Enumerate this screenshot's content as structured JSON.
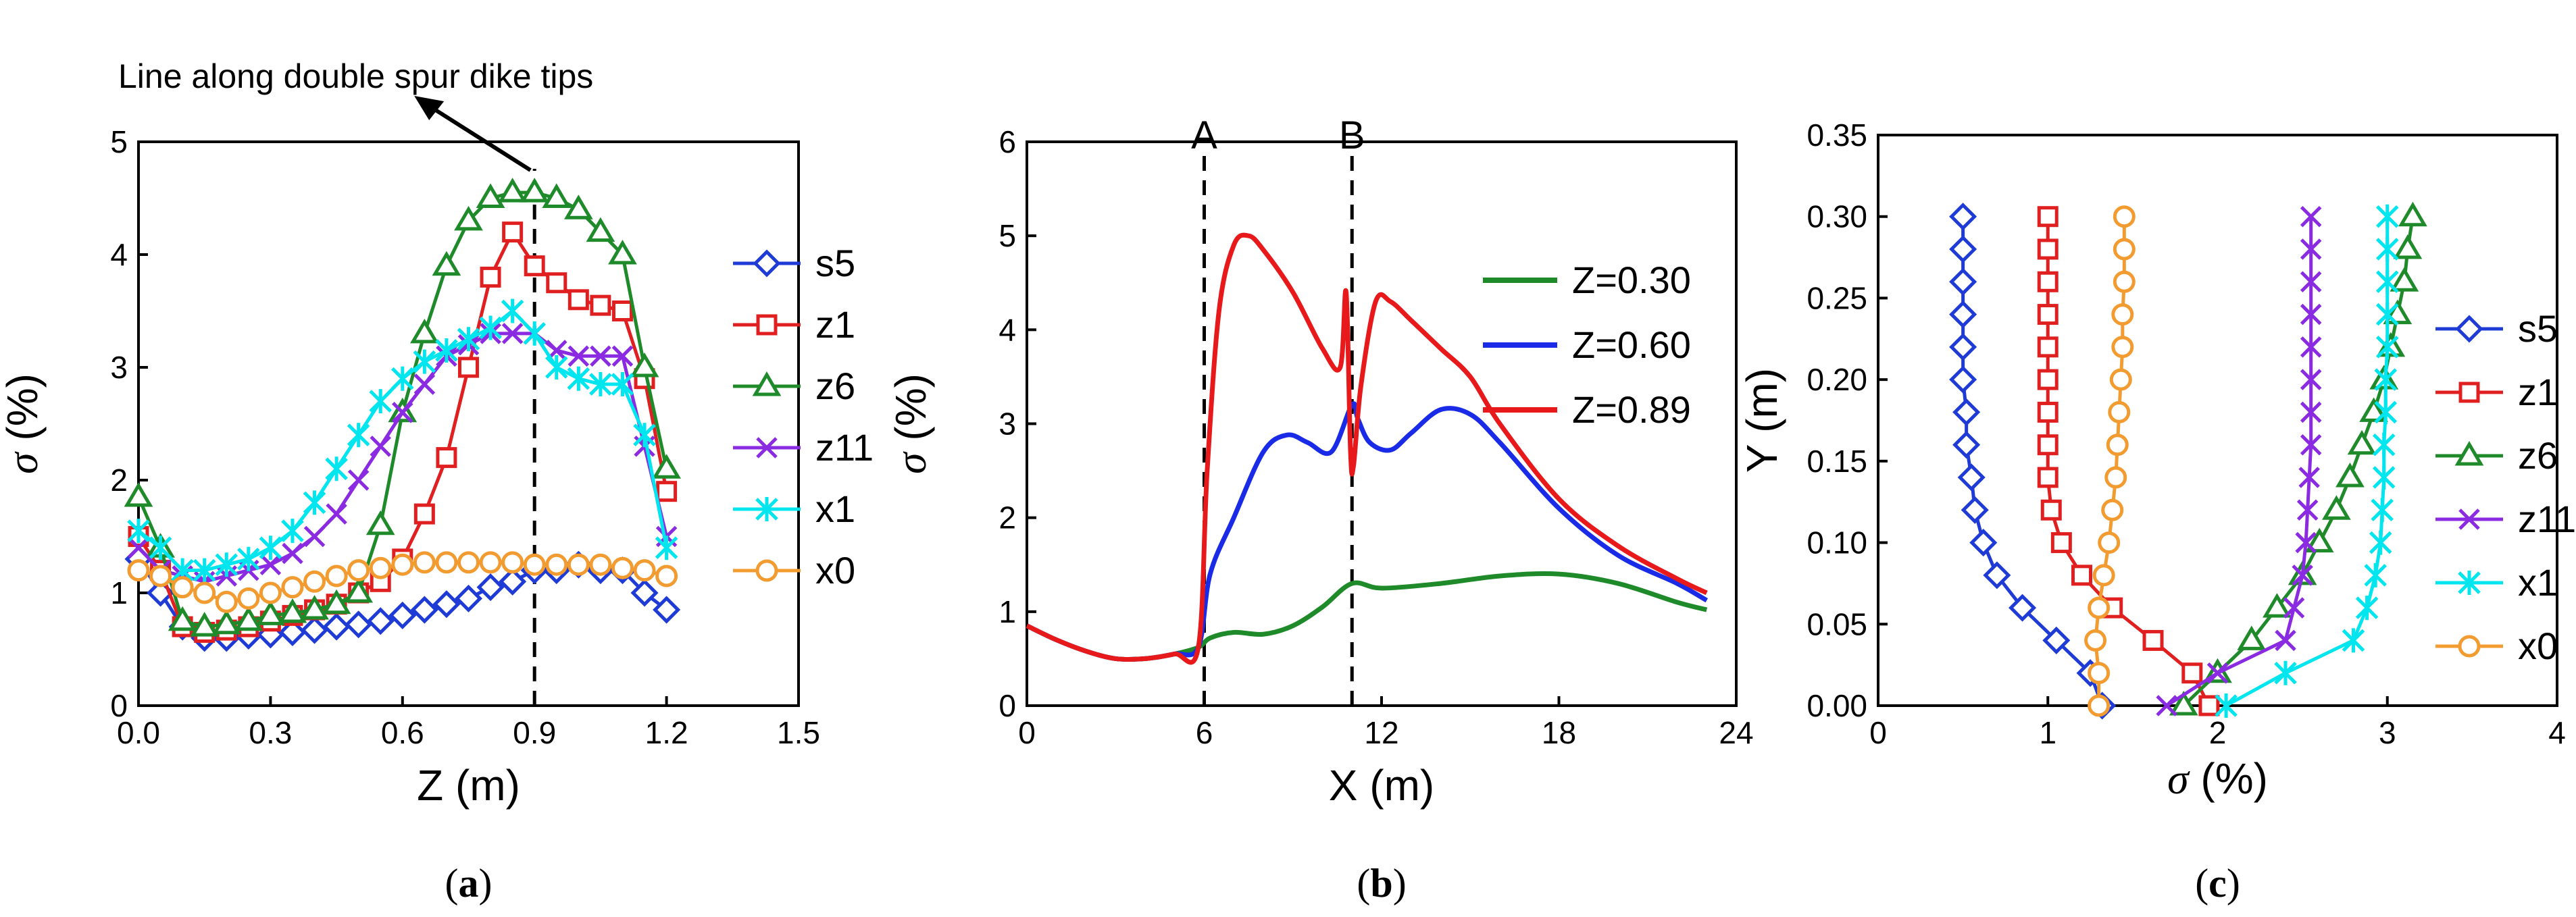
{
  "chart_data": [
    {
      "type": "line",
      "panel_label": "a",
      "xlabel": "Z (m)",
      "ylabel_symbol": "σ",
      "ylabel_unit": "(%)",
      "xlim": [
        0,
        1.5
      ],
      "ylim": [
        0,
        5
      ],
      "xticks": [
        "0.0",
        "0.3",
        "0.6",
        "0.9",
        "1.2",
        "1.5"
      ],
      "xtick_values": [
        0,
        0.3,
        0.6,
        0.9,
        1.2,
        1.5
      ],
      "yticks": [
        "0",
        "1",
        "2",
        "3",
        "4",
        "5"
      ],
      "ytick_values": [
        0,
        1,
        2,
        3,
        4,
        5
      ],
      "annotation": {
        "text": "Line along double spur dike tips",
        "x": 0.9
      },
      "legend_position": "right",
      "series": [
        {
          "name": "s5",
          "color": "#1f3bd6",
          "marker": "diamond",
          "x": [
            0,
            0.05,
            0.1,
            0.15,
            0.2,
            0.25,
            0.3,
            0.35,
            0.4,
            0.45,
            0.5,
            0.55,
            0.6,
            0.65,
            0.7,
            0.75,
            0.8,
            0.85,
            0.9,
            0.95,
            1.0,
            1.05,
            1.1,
            1.15,
            1.2
          ],
          "y": [
            1.3,
            1.0,
            0.7,
            0.6,
            0.6,
            0.62,
            0.63,
            0.65,
            0.67,
            0.7,
            0.72,
            0.75,
            0.8,
            0.85,
            0.9,
            0.95,
            1.05,
            1.1,
            1.2,
            1.2,
            1.25,
            1.2,
            1.2,
            1.0,
            0.85
          ]
        },
        {
          "name": "z1",
          "color": "#e02020",
          "marker": "square",
          "x": [
            0,
            0.05,
            0.1,
            0.15,
            0.2,
            0.25,
            0.3,
            0.35,
            0.4,
            0.45,
            0.5,
            0.55,
            0.6,
            0.65,
            0.7,
            0.75,
            0.8,
            0.85,
            0.9,
            0.95,
            1.0,
            1.05,
            1.1,
            1.15,
            1.2
          ],
          "y": [
            1.5,
            1.2,
            0.7,
            0.65,
            0.67,
            0.7,
            0.75,
            0.8,
            0.85,
            0.9,
            1.0,
            1.1,
            1.3,
            1.7,
            2.2,
            3.0,
            3.8,
            4.2,
            3.9,
            3.75,
            3.6,
            3.55,
            3.5,
            2.9,
            1.9
          ]
        },
        {
          "name": "z6",
          "color": "#1e8a2a",
          "marker": "triangle",
          "x": [
            0,
            0.05,
            0.1,
            0.15,
            0.2,
            0.25,
            0.3,
            0.35,
            0.4,
            0.45,
            0.5,
            0.55,
            0.6,
            0.65,
            0.7,
            0.75,
            0.8,
            0.85,
            0.9,
            0.95,
            1.0,
            1.05,
            1.1,
            1.15,
            1.2
          ],
          "y": [
            1.85,
            1.4,
            0.75,
            0.7,
            0.72,
            0.75,
            0.8,
            0.82,
            0.85,
            0.9,
            1.0,
            1.6,
            2.6,
            3.3,
            3.9,
            4.3,
            4.5,
            4.55,
            4.55,
            4.5,
            4.4,
            4.2,
            4.0,
            3.0,
            2.1
          ]
        },
        {
          "name": "z11",
          "color": "#8a2be2",
          "marker": "cross",
          "x": [
            0,
            0.05,
            0.1,
            0.15,
            0.2,
            0.25,
            0.3,
            0.35,
            0.4,
            0.45,
            0.5,
            0.55,
            0.6,
            0.65,
            0.7,
            0.75,
            0.8,
            0.85,
            0.9,
            0.95,
            1.0,
            1.05,
            1.1,
            1.15,
            1.2
          ],
          "y": [
            1.4,
            1.2,
            1.15,
            1.1,
            1.15,
            1.2,
            1.25,
            1.35,
            1.5,
            1.7,
            2.0,
            2.3,
            2.6,
            2.85,
            3.1,
            3.2,
            3.3,
            3.3,
            3.3,
            3.15,
            3.1,
            3.1,
            3.1,
            2.3,
            1.5
          ]
        },
        {
          "name": "x1",
          "color": "#00e5ee",
          "marker": "star",
          "x": [
            0,
            0.05,
            0.1,
            0.15,
            0.2,
            0.25,
            0.3,
            0.35,
            0.4,
            0.45,
            0.5,
            0.55,
            0.6,
            0.65,
            0.7,
            0.75,
            0.8,
            0.85,
            0.9,
            0.95,
            1.0,
            1.05,
            1.1,
            1.15,
            1.2
          ],
          "y": [
            1.55,
            1.4,
            1.2,
            1.2,
            1.25,
            1.3,
            1.4,
            1.55,
            1.8,
            2.1,
            2.4,
            2.7,
            2.9,
            3.05,
            3.15,
            3.25,
            3.35,
            3.5,
            3.3,
            3.0,
            2.9,
            2.85,
            2.85,
            2.4,
            1.4
          ]
        },
        {
          "name": "x0",
          "color": "#f29b30",
          "marker": "circle",
          "x": [
            0,
            0.05,
            0.1,
            0.15,
            0.2,
            0.25,
            0.3,
            0.35,
            0.4,
            0.45,
            0.5,
            0.55,
            0.6,
            0.65,
            0.7,
            0.75,
            0.8,
            0.85,
            0.9,
            0.95,
            1.0,
            1.05,
            1.1,
            1.15,
            1.2
          ],
          "y": [
            1.2,
            1.15,
            1.05,
            1.0,
            0.92,
            0.95,
            1.0,
            1.05,
            1.1,
            1.15,
            1.2,
            1.22,
            1.25,
            1.27,
            1.27,
            1.27,
            1.27,
            1.27,
            1.25,
            1.25,
            1.25,
            1.25,
            1.22,
            1.2,
            1.15
          ]
        }
      ]
    },
    {
      "type": "line",
      "panel_label": "b",
      "xlabel": "X (m)",
      "ylabel_symbol": "σ",
      "ylabel_unit": "(%)",
      "xlim": [
        0,
        24
      ],
      "ylim": [
        0,
        6
      ],
      "xticks": [
        "0",
        "6",
        "12",
        "18",
        "24"
      ],
      "xtick_values": [
        0,
        6,
        12,
        18,
        24
      ],
      "yticks": [
        "0",
        "1",
        "2",
        "3",
        "4",
        "5",
        "6"
      ],
      "ytick_values": [
        0,
        1,
        2,
        3,
        4,
        5,
        6
      ],
      "markers": [
        {
          "label": "A",
          "x": 6
        },
        {
          "label": "B",
          "x": 11
        }
      ],
      "legend_position": "top-right",
      "series": [
        {
          "name": "Z=0.30",
          "color": "#1e8a2a",
          "x": [
            0,
            1,
            2,
            3,
            4,
            5,
            5.8,
            6.2,
            7,
            8,
            9,
            10,
            11,
            12,
            14,
            16,
            18,
            20,
            22,
            23
          ],
          "y": [
            0.85,
            0.7,
            0.58,
            0.5,
            0.5,
            0.55,
            0.62,
            0.72,
            0.78,
            0.76,
            0.85,
            1.05,
            1.3,
            1.25,
            1.3,
            1.38,
            1.4,
            1.3,
            1.1,
            1.02
          ]
        },
        {
          "name": "Z=0.60",
          "color": "#1a2be8",
          "x": [
            0,
            1,
            2,
            3,
            4,
            5,
            5.8,
            6.2,
            7,
            8,
            8.8,
            9.5,
            10.3,
            11.0,
            11.2,
            11.6,
            12.3,
            13,
            14,
            15,
            16,
            18,
            20,
            22,
            23
          ],
          "y": [
            0.85,
            0.7,
            0.58,
            0.5,
            0.5,
            0.55,
            0.62,
            1.4,
            2.0,
            2.7,
            2.88,
            2.8,
            2.7,
            3.2,
            3.05,
            2.8,
            2.72,
            2.9,
            3.15,
            3.1,
            2.8,
            2.1,
            1.6,
            1.3,
            1.12
          ]
        },
        {
          "name": "Z=0.89",
          "color": "#e8191a",
          "x": [
            0,
            1,
            2,
            3,
            4,
            5,
            5.8,
            6.1,
            6.5,
            7,
            7.5,
            8,
            9,
            10,
            10.6,
            10.8,
            10.95,
            11.05,
            11.3,
            11.8,
            12.3,
            13,
            14,
            15,
            16,
            18,
            20,
            22,
            23
          ],
          "y": [
            0.85,
            0.7,
            0.58,
            0.5,
            0.5,
            0.55,
            0.62,
            2.5,
            4.2,
            4.9,
            5.0,
            4.85,
            4.4,
            3.8,
            3.6,
            4.4,
            2.7,
            2.55,
            3.4,
            4.3,
            4.3,
            4.1,
            3.8,
            3.5,
            3.0,
            2.2,
            1.7,
            1.35,
            1.2
          ]
        }
      ]
    },
    {
      "type": "line",
      "panel_label": "c",
      "xlabel_symbol": "σ",
      "xlabel_unit": "(%)",
      "ylabel": "Y (m)",
      "xlim": [
        0,
        4
      ],
      "ylim": [
        0,
        0.35
      ],
      "xticks": [
        "0",
        "1",
        "2",
        "3",
        "4"
      ],
      "xtick_values": [
        0,
        1,
        2,
        3,
        4
      ],
      "yticks": [
        "0.00",
        "0.05",
        "0.10",
        "0.15",
        "0.20",
        "0.25",
        "0.30",
        "0.35"
      ],
      "ytick_values": [
        0,
        0.05,
        0.1,
        0.15,
        0.2,
        0.25,
        0.3,
        0.35
      ],
      "legend_position": "right",
      "series": [
        {
          "name": "s5",
          "color": "#1f3bd6",
          "marker": "diamond",
          "x": [
            1.32,
            1.25,
            1.05,
            0.85,
            0.7,
            0.62,
            0.57,
            0.55,
            0.52,
            0.52,
            0.5,
            0.5,
            0.5,
            0.5,
            0.5,
            0.5
          ],
          "y": [
            0.0,
            0.02,
            0.04,
            0.06,
            0.08,
            0.1,
            0.12,
            0.14,
            0.16,
            0.18,
            0.2,
            0.22,
            0.24,
            0.26,
            0.28,
            0.3
          ]
        },
        {
          "name": "z1",
          "color": "#e02020",
          "marker": "square",
          "x": [
            1.95,
            1.85,
            1.62,
            1.38,
            1.2,
            1.08,
            1.02,
            1.0,
            1.0,
            1.0,
            1.0,
            1.0,
            1.0,
            1.0,
            1.0,
            1.0
          ],
          "y": [
            0.0,
            0.02,
            0.04,
            0.06,
            0.08,
            0.1,
            0.12,
            0.14,
            0.16,
            0.18,
            0.2,
            0.22,
            0.24,
            0.26,
            0.28,
            0.3
          ]
        },
        {
          "name": "z6",
          "color": "#1e8a2a",
          "marker": "triangle",
          "x": [
            1.8,
            2.0,
            2.2,
            2.35,
            2.5,
            2.6,
            2.7,
            2.78,
            2.85,
            2.92,
            2.98,
            3.02,
            3.06,
            3.1,
            3.12,
            3.15
          ],
          "y": [
            0.0,
            0.02,
            0.04,
            0.06,
            0.08,
            0.1,
            0.12,
            0.14,
            0.16,
            0.18,
            0.2,
            0.22,
            0.24,
            0.26,
            0.28,
            0.3
          ]
        },
        {
          "name": "z11",
          "color": "#8a2be2",
          "marker": "cross",
          "x": [
            1.7,
            2.0,
            2.4,
            2.45,
            2.5,
            2.52,
            2.53,
            2.54,
            2.55,
            2.55,
            2.55,
            2.55,
            2.55,
            2.55,
            2.55,
            2.55
          ],
          "y": [
            0.0,
            0.02,
            0.04,
            0.06,
            0.08,
            0.1,
            0.12,
            0.14,
            0.16,
            0.18,
            0.2,
            0.22,
            0.24,
            0.26,
            0.28,
            0.3
          ]
        },
        {
          "name": "x1",
          "color": "#00e5ee",
          "marker": "star",
          "x": [
            2.05,
            2.4,
            2.8,
            2.88,
            2.93,
            2.96,
            2.97,
            2.98,
            2.98,
            2.99,
            2.99,
            3.0,
            3.0,
            3.0,
            3.0,
            3.0
          ],
          "y": [
            0.0,
            0.02,
            0.04,
            0.06,
            0.08,
            0.1,
            0.12,
            0.14,
            0.16,
            0.18,
            0.2,
            0.22,
            0.24,
            0.26,
            0.28,
            0.3
          ]
        },
        {
          "name": "x0",
          "color": "#f29b30",
          "marker": "circle",
          "x": [
            1.3,
            1.3,
            1.28,
            1.3,
            1.33,
            1.36,
            1.38,
            1.4,
            1.41,
            1.42,
            1.43,
            1.44,
            1.44,
            1.45,
            1.45,
            1.45
          ],
          "y": [
            0.0,
            0.02,
            0.04,
            0.06,
            0.08,
            0.1,
            0.12,
            0.14,
            0.16,
            0.18,
            0.2,
            0.22,
            0.24,
            0.26,
            0.28,
            0.3
          ]
        }
      ]
    }
  ]
}
